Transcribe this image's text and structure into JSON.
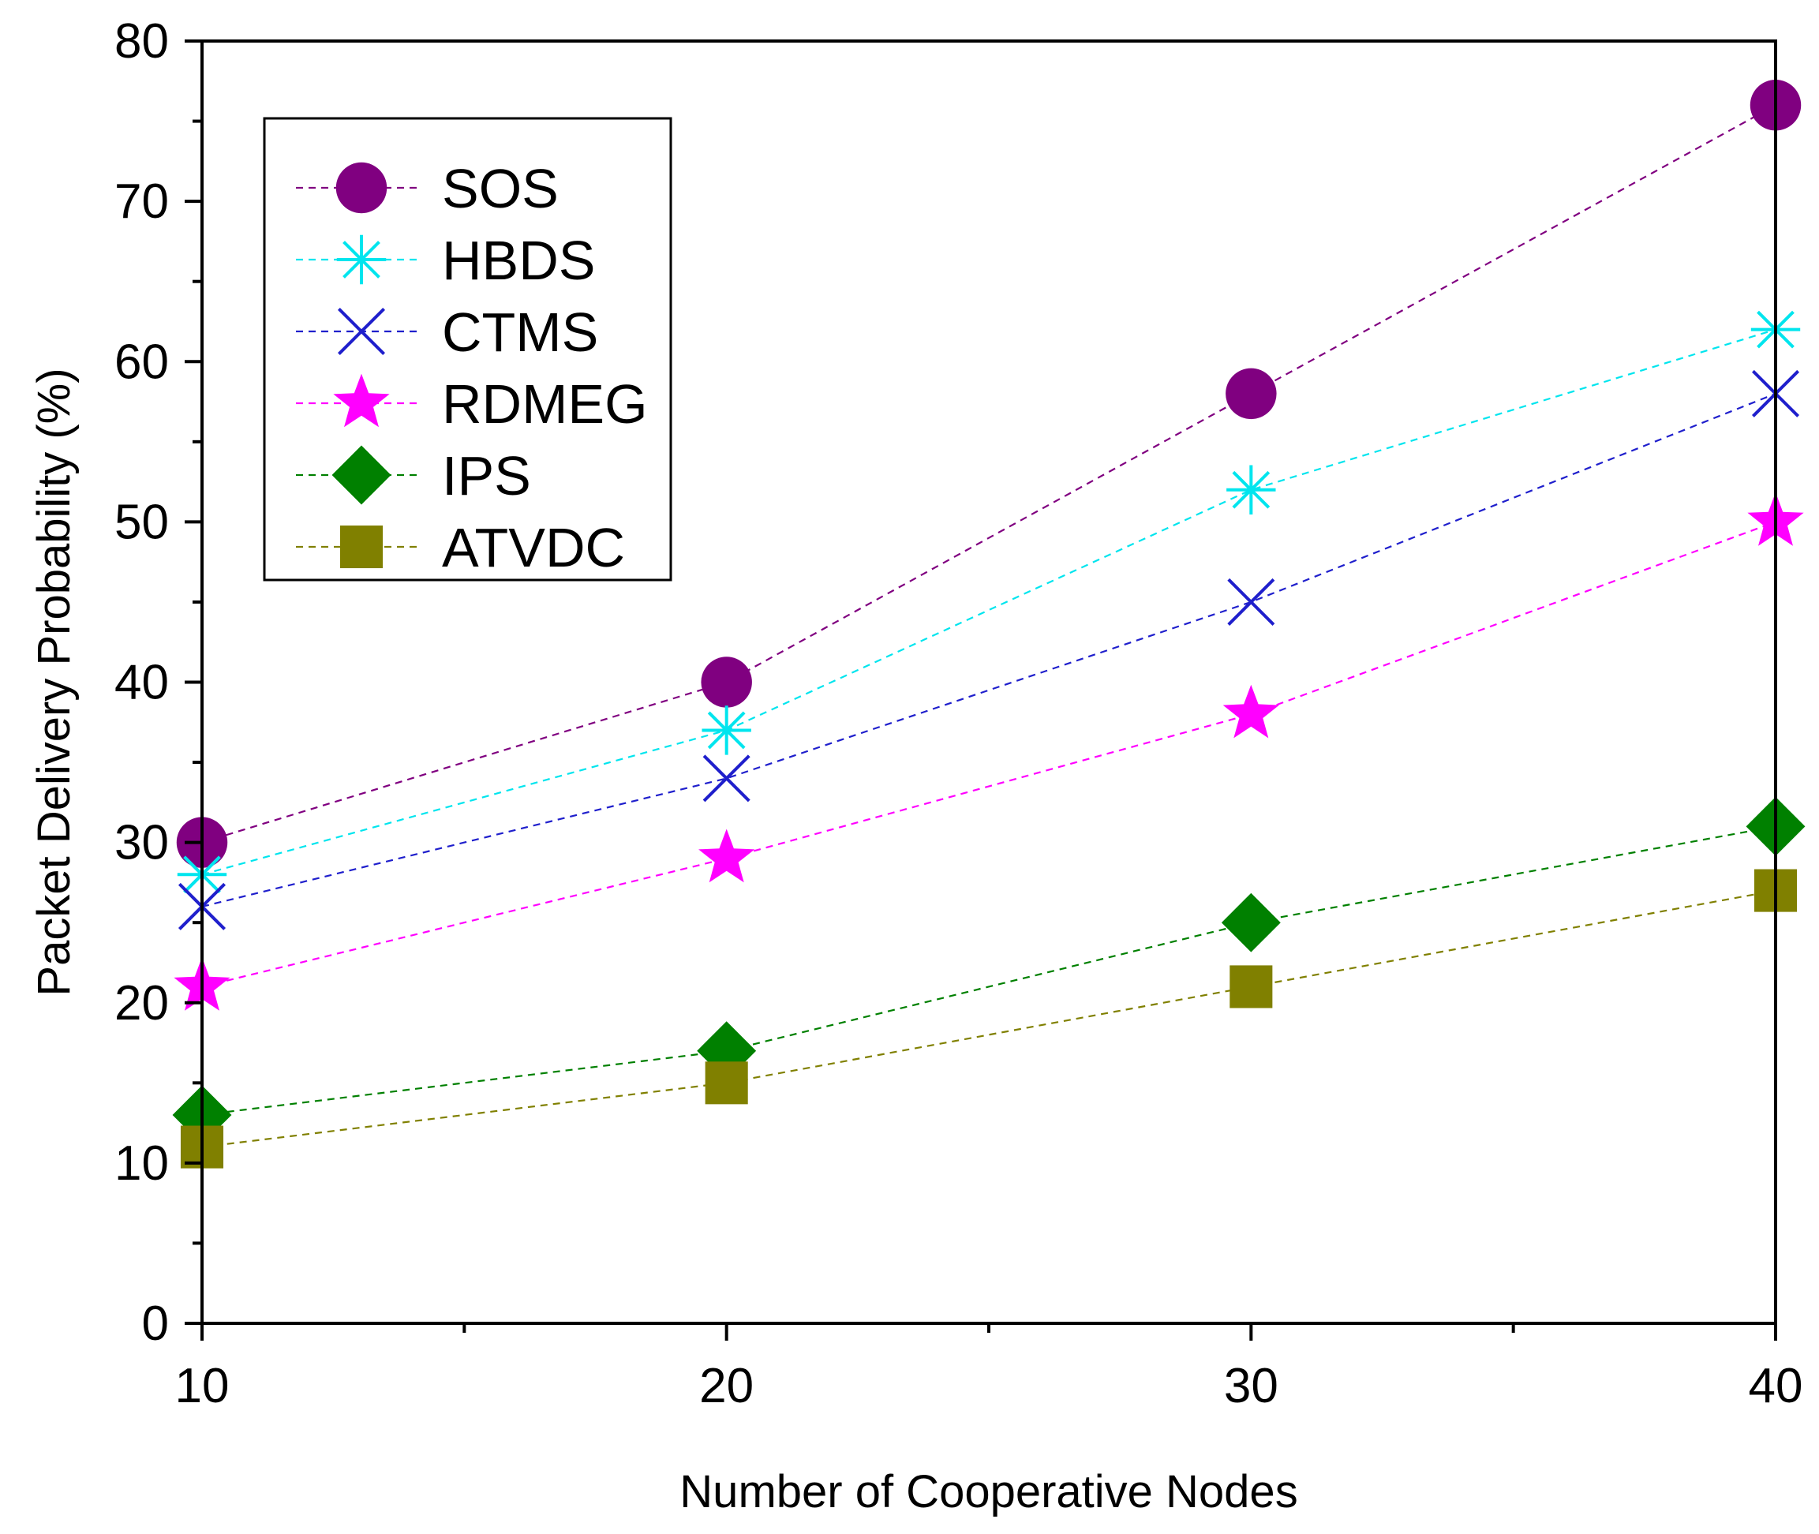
{
  "chart_data": {
    "type": "line",
    "title": "",
    "xlabel": "Number of Cooperative Nodes",
    "ylabel": "Packet Delivery Probability (%)",
    "x": [
      10,
      20,
      30,
      40
    ],
    "xlim": [
      10,
      40
    ],
    "ylim": [
      0,
      80
    ],
    "x_ticks": [
      10,
      20,
      30,
      40
    ],
    "x_tick_labels": [
      "10",
      "20",
      "30",
      "40"
    ],
    "y_ticks": [
      0,
      10,
      20,
      30,
      40,
      50,
      60,
      70,
      80
    ],
    "y_tick_labels": [
      "0",
      "10",
      "20",
      "30",
      "40",
      "50",
      "60",
      "70",
      "80"
    ],
    "grid": false,
    "legend_position": "top-left",
    "series": [
      {
        "name": "SOS",
        "values": [
          30,
          40,
          58,
          76
        ],
        "color": "#800080",
        "marker": "circle"
      },
      {
        "name": "HBDS",
        "values": [
          28,
          37,
          52,
          62
        ],
        "color": "#00E5EE",
        "marker": "asterisk"
      },
      {
        "name": "CTMS",
        "values": [
          26,
          34,
          45,
          58
        ],
        "color": "#1F1FCC",
        "marker": "x"
      },
      {
        "name": "RDMEG",
        "values": [
          21,
          29,
          38,
          50
        ],
        "color": "#FF00FF",
        "marker": "star"
      },
      {
        "name": "IPS",
        "values": [
          13,
          17,
          25,
          31
        ],
        "color": "#008000",
        "marker": "diamond"
      },
      {
        "name": "ATVDC",
        "values": [
          11,
          15,
          21,
          27
        ],
        "color": "#808000",
        "marker": "square"
      }
    ]
  }
}
